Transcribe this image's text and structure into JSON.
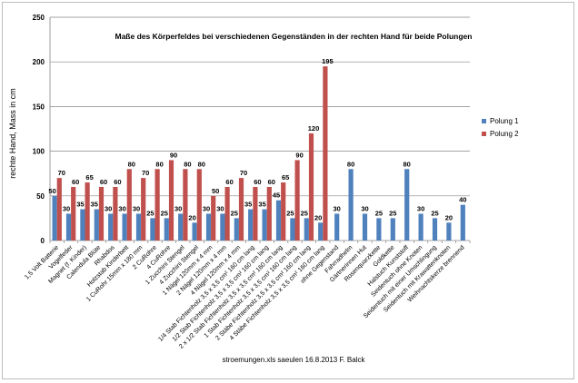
{
  "chart_data": {
    "type": "bar",
    "title": "Maße des Körperfeldes bei verschiedenen Gegenständen in der rechten Hand für beide Polungen",
    "ylabel": "rechte Hand, Mass in cm",
    "xlabel": "",
    "footer": "stroemungen.xls saeulen  16.8.2013 F. Balck",
    "ylim": [
      0,
      250
    ],
    "yticks": [
      0,
      50,
      100,
      150,
      200,
      250
    ],
    "categories": [
      "1,5 Volt Batterie",
      "Vogelfeder",
      "Magnet (f. Kinder)",
      "Calendula Blüte",
      "Rhabdos",
      "Holzstab Kinderbett",
      "1 CuRohr 15mm x 180 mm",
      "2 CuRohre",
      "4 CuRohre",
      "1 Zucchini Stengel",
      "4 Zucchini Stengel",
      "1 Nägel 120mm x 4 mm",
      "2 Nägel 120mm x 4 mm",
      "4 Nägel 120mm x 4 mm",
      "1/4 Stab Fichtenholz 3,5 x 3,5 cm² 160 cm lang",
      "1/2 Stab Fichtenholz 3,5 x 3,5 cm² 160 cm lang",
      "2 x 1/2 Stab Fichtenholz 3,5 x 3,5 cm² 160 cm lang",
      "1 Stab Fichtenholz 3,5 x 3,5 cm² 160 cm lang",
      "2 Stäbe Fichtenholz 3,5 x 3,5 cm² 160 cm lang",
      "4 Stäbe Fichtenholz 3,5 x 3,5 cm² 160 cm lang",
      "ohne Gegenstand",
      "Fahrradhelm",
      "Gärtnerinnen Hut",
      "Rosenquarzkette",
      "Goldkette",
      "Halstuch Kunststoff",
      "Seidentuch ohne Knoten",
      "Seidentuch mit einer Umschlingung",
      "Seidentuch mit Krawattenknoten",
      "Weihnachtskerze brennend"
    ],
    "series": [
      {
        "name": "Polung 1",
        "color": "#4f81bd",
        "values": [
          50,
          30,
          35,
          35,
          30,
          30,
          30,
          25,
          25,
          30,
          20,
          30,
          30,
          25,
          35,
          35,
          45,
          25,
          25,
          20,
          30,
          80,
          30,
          25,
          25,
          80,
          30,
          25,
          20,
          40
        ]
      },
      {
        "name": "Polung 2",
        "color": "#c0504d",
        "values": [
          70,
          60,
          65,
          60,
          60,
          80,
          70,
          80,
          90,
          80,
          80,
          50,
          60,
          70,
          60,
          60,
          65,
          90,
          120,
          195,
          null,
          null,
          null,
          null,
          null,
          null,
          null,
          null,
          null,
          null
        ]
      }
    ],
    "legend_position": "right"
  }
}
